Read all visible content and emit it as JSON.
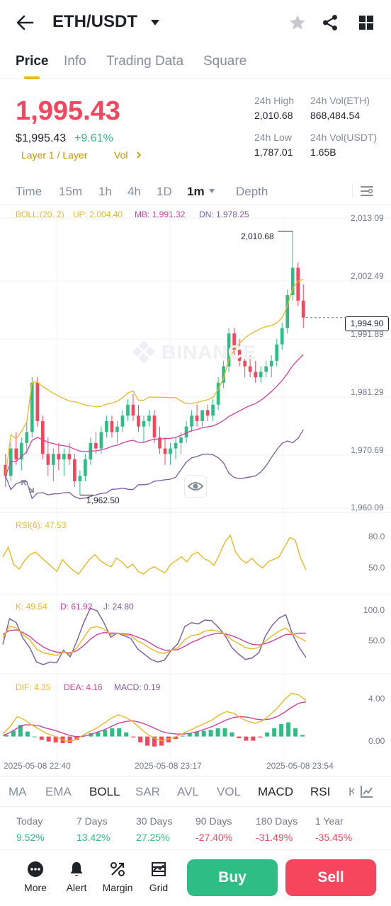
{
  "header": {
    "pair": "ETH/USDT",
    "icons": [
      "back-arrow-icon",
      "caret-down-icon",
      "star-icon",
      "share-icon",
      "grid-icon"
    ]
  },
  "tabs": [
    "Price",
    "Info",
    "Trading Data",
    "Square"
  ],
  "price": {
    "last": "1,995.43",
    "usd": "$1,995.43",
    "change": "+9.61%",
    "tag": "Layer 1 / Layer",
    "vol_tag": "Vol",
    "high_label": "24h High",
    "high": "2,010.68",
    "low_label": "24h Low",
    "low": "1,787.01",
    "vol_eth_label": "24h Vol(ETH)",
    "vol_eth": "868,484.54",
    "vol_usdt_label": "24h Vol(USDT)",
    "vol_usdt": "1.65B"
  },
  "intervals": {
    "items": [
      "Time",
      "15m",
      "1h",
      "4h",
      "1D",
      "1m",
      "Depth"
    ],
    "active": "1m"
  },
  "boll": {
    "label": "BOLL:(20, 2)",
    "up": "UP: 2,004.40",
    "mb": "MB: 1,991.32",
    "dn": "DN: 1,978.25"
  },
  "price_axis": [
    "2,013.09",
    "2,002.49",
    "1,991.89",
    "1,981.29",
    "1,970.69",
    "1,960.09"
  ],
  "current_price_tag": "1,994.90",
  "high_marker": "2,010.68",
  "low_marker": "1,962.50",
  "watermark": "BINANCE",
  "rsi": {
    "label": "RSI(6): 47.53",
    "axis": [
      "80.0",
      "50.0"
    ]
  },
  "kdj": {
    "k": "K: 49.54",
    "d": "D: 61.92",
    "j": "J: 24.80",
    "axis": [
      "100.0",
      "50.0"
    ]
  },
  "macd": {
    "dif": "DIF: 4.35",
    "dea": "DEA: 4.16",
    "macd": "MACD: 0.19",
    "axis": [
      "4.00",
      "0.00"
    ]
  },
  "time_axis": [
    "2025-05-08 22:40",
    "2025-05-08 23:17",
    "2025-05-08 23:54"
  ],
  "indicator_tabs": [
    "MA",
    "EMA",
    "BOLL",
    "SAR",
    "AVL",
    "VOL",
    "MACD",
    "RSI",
    "K"
  ],
  "indicator_active": [
    "BOLL",
    "MACD",
    "RSI"
  ],
  "performance": [
    {
      "label": "Today",
      "value": "9.52%"
    },
    {
      "label": "7 Days",
      "value": "13.42%"
    },
    {
      "label": "30 Days",
      "value": "27.25%"
    },
    {
      "label": "90 Days",
      "value": "-27.40%"
    },
    {
      "label": "180 Days",
      "value": "-31.49%"
    },
    {
      "label": "1 Year",
      "value": "-35.45%"
    }
  ],
  "bottom_bar": {
    "more": "More",
    "alert": "Alert",
    "margin": "Margin",
    "grid": "Grid",
    "buy": "Buy",
    "sell": "Sell"
  },
  "colors": {
    "up": "#2ebd85",
    "down": "#f6465d",
    "yellow": "#e8b923",
    "magenta": "#d13fa0",
    "purple": "#7a5b9e",
    "accent": "#f0b90b"
  },
  "chart_data": {
    "type": "candlestick",
    "title": "",
    "ylim": [
      1960.09,
      2013.09
    ],
    "candles": [
      {
        "o": 1968,
        "h": 1970,
        "l": 1964,
        "c": 1966
      },
      {
        "o": 1966,
        "h": 1972,
        "l": 1965,
        "c": 1971
      },
      {
        "o": 1971,
        "h": 1974,
        "l": 1968,
        "c": 1969
      },
      {
        "o": 1969,
        "h": 1973,
        "l": 1967,
        "c": 1972
      },
      {
        "o": 1972,
        "h": 1976,
        "l": 1970,
        "c": 1974
      },
      {
        "o": 1974,
        "h": 1984,
        "l": 1973,
        "c": 1983
      },
      {
        "o": 1983,
        "h": 1984,
        "l": 1975,
        "c": 1976
      },
      {
        "o": 1976,
        "h": 1977,
        "l": 1969,
        "c": 1970
      },
      {
        "o": 1970,
        "h": 1973,
        "l": 1966,
        "c": 1968
      },
      {
        "o": 1968,
        "h": 1971,
        "l": 1965,
        "c": 1970
      },
      {
        "o": 1970,
        "h": 1972,
        "l": 1967,
        "c": 1969
      },
      {
        "o": 1969,
        "h": 1971,
        "l": 1966,
        "c": 1970
      },
      {
        "o": 1970,
        "h": 1972,
        "l": 1968,
        "c": 1969
      },
      {
        "o": 1969,
        "h": 1970,
        "l": 1964,
        "c": 1965
      },
      {
        "o": 1965,
        "h": 1967,
        "l": 1962.5,
        "c": 1966
      },
      {
        "o": 1966,
        "h": 1970,
        "l": 1965,
        "c": 1969
      },
      {
        "o": 1969,
        "h": 1973,
        "l": 1968,
        "c": 1972
      },
      {
        "o": 1972,
        "h": 1974,
        "l": 1970,
        "c": 1971
      },
      {
        "o": 1971,
        "h": 1975,
        "l": 1970,
        "c": 1974
      },
      {
        "o": 1974,
        "h": 1977,
        "l": 1973,
        "c": 1976
      },
      {
        "o": 1976,
        "h": 1977,
        "l": 1973,
        "c": 1974
      },
      {
        "o": 1974,
        "h": 1976,
        "l": 1972,
        "c": 1975
      },
      {
        "o": 1975,
        "h": 1978,
        "l": 1974,
        "c": 1977
      },
      {
        "o": 1977,
        "h": 1980,
        "l": 1976,
        "c": 1979
      },
      {
        "o": 1979,
        "h": 1981,
        "l": 1976,
        "c": 1977
      },
      {
        "o": 1977,
        "h": 1979,
        "l": 1974,
        "c": 1975
      },
      {
        "o": 1975,
        "h": 1977,
        "l": 1972,
        "c": 1976
      },
      {
        "o": 1976,
        "h": 1978,
        "l": 1975,
        "c": 1977
      },
      {
        "o": 1977,
        "h": 1978,
        "l": 1972,
        "c": 1973
      },
      {
        "o": 1973,
        "h": 1975,
        "l": 1970,
        "c": 1971
      },
      {
        "o": 1971,
        "h": 1973,
        "l": 1968,
        "c": 1970
      },
      {
        "o": 1970,
        "h": 1972,
        "l": 1968,
        "c": 1971
      },
      {
        "o": 1971,
        "h": 1973,
        "l": 1969,
        "c": 1972
      },
      {
        "o": 1972,
        "h": 1974,
        "l": 1970,
        "c": 1973
      },
      {
        "o": 1973,
        "h": 1976,
        "l": 1972,
        "c": 1975
      },
      {
        "o": 1975,
        "h": 1978,
        "l": 1974,
        "c": 1977
      },
      {
        "o": 1977,
        "h": 1979,
        "l": 1975,
        "c": 1976
      },
      {
        "o": 1976,
        "h": 1978,
        "l": 1975,
        "c": 1978
      },
      {
        "o": 1978,
        "h": 1979,
        "l": 1976,
        "c": 1977
      },
      {
        "o": 1977,
        "h": 1980,
        "l": 1976,
        "c": 1979
      },
      {
        "o": 1979,
        "h": 1984,
        "l": 1978,
        "c": 1983
      },
      {
        "o": 1983,
        "h": 1987,
        "l": 1982,
        "c": 1986
      },
      {
        "o": 1986,
        "h": 1993,
        "l": 1985,
        "c": 1992
      },
      {
        "o": 1992,
        "h": 1993,
        "l": 1988,
        "c": 1989
      },
      {
        "o": 1989,
        "h": 1991,
        "l": 1986,
        "c": 1987
      },
      {
        "o": 1987,
        "h": 1989,
        "l": 1984,
        "c": 1986
      },
      {
        "o": 1986,
        "h": 1988,
        "l": 1984,
        "c": 1985
      },
      {
        "o": 1985,
        "h": 1987,
        "l": 1983,
        "c": 1984
      },
      {
        "o": 1984,
        "h": 1986,
        "l": 1983,
        "c": 1985
      },
      {
        "o": 1985,
        "h": 1987,
        "l": 1984,
        "c": 1986
      },
      {
        "o": 1986,
        "h": 1988,
        "l": 1984,
        "c": 1987
      },
      {
        "o": 1987,
        "h": 1991,
        "l": 1986,
        "c": 1990
      },
      {
        "o": 1990,
        "h": 1994,
        "l": 1989,
        "c": 1993
      },
      {
        "o": 1993,
        "h": 2000,
        "l": 1992,
        "c": 1999
      },
      {
        "o": 1999,
        "h": 2010.68,
        "l": 1998,
        "c": 2004
      },
      {
        "o": 2004,
        "h": 2005,
        "l": 1997,
        "c": 1998
      },
      {
        "o": 1998,
        "h": 2001,
        "l": 1993,
        "c": 1994.9
      }
    ],
    "rsi": [
      58,
      66,
      52,
      48,
      55,
      60,
      62,
      58,
      54,
      50,
      46,
      56,
      51,
      47,
      44,
      50,
      56,
      60,
      55,
      52,
      50,
      57,
      54,
      49,
      52,
      46,
      44,
      48,
      50,
      47,
      45,
      52,
      55,
      58,
      54,
      60,
      62,
      57,
      55,
      51,
      60,
      70,
      76,
      62,
      56,
      53,
      57,
      52,
      49,
      54,
      56,
      58,
      66,
      74,
      72,
      57,
      47.53
    ],
    "kdj_k": [
      55,
      72,
      70,
      60,
      52,
      38,
      32,
      30,
      28,
      34,
      30,
      40,
      55,
      70,
      72,
      68,
      60,
      62,
      60,
      58,
      50,
      45,
      38,
      33,
      31,
      36,
      40,
      52,
      58,
      60,
      65,
      67,
      65,
      60,
      52,
      46,
      40,
      38,
      40,
      50,
      58,
      65,
      70,
      60,
      55,
      49.54
    ],
    "kdj_d": [
      60,
      66,
      67,
      63,
      57,
      48,
      41,
      36,
      33,
      33,
      32,
      35,
      43,
      53,
      60,
      63,
      62,
      62,
      61,
      60,
      56,
      52,
      46,
      40,
      36,
      36,
      37,
      42,
      48,
      52,
      57,
      60,
      62,
      61,
      58,
      54,
      49,
      45,
      44,
      46,
      50,
      55,
      60,
      60,
      62,
      61.92
    ],
    "kdj_j": [
      45,
      84,
      78,
      54,
      40,
      18,
      14,
      18,
      17,
      36,
      26,
      50,
      78,
      100,
      96,
      78,
      56,
      62,
      58,
      54,
      38,
      30,
      22,
      18,
      21,
      36,
      46,
      72,
      78,
      76,
      82,
      81,
      71,
      58,
      40,
      30,
      22,
      24,
      32,
      58,
      74,
      85,
      90,
      60,
      40,
      24.8
    ],
    "macd_dif": [
      0.3,
      1.2,
      2.4,
      2.0,
      1.4,
      0.9,
      0.4,
      0.1,
      -0.3,
      -0.6,
      -0.4,
      0.1,
      0.6,
      1.0,
      1.6,
      2.2,
      2.6,
      2.3,
      1.8,
      1.0,
      0.3,
      -0.2,
      -0.5,
      -0.3,
      0.0,
      0.4,
      0.8,
      1.2,
      1.6,
      2.0,
      2.6,
      3.0,
      2.8,
      2.2,
      1.8,
      1.6,
      1.9,
      2.6,
      3.4,
      4.4,
      5.2,
      5.0,
      4.35
    ],
    "macd_dea": [
      0.1,
      0.5,
      1.0,
      1.4,
      1.4,
      1.3,
      1.0,
      0.8,
      0.5,
      0.2,
      0.0,
      0.0,
      0.2,
      0.5,
      0.8,
      1.2,
      1.6,
      1.8,
      1.9,
      1.7,
      1.4,
      1.0,
      0.6,
      0.4,
      0.3,
      0.3,
      0.4,
      0.6,
      0.9,
      1.2,
      1.6,
      2.0,
      2.3,
      2.4,
      2.3,
      2.1,
      2.0,
      2.1,
      2.4,
      2.9,
      3.5,
      4.0,
      4.16
    ],
    "macd_hist": [
      0.2,
      0.7,
      1.4,
      0.6,
      0.0,
      -0.4,
      -0.6,
      -0.7,
      -0.8,
      -0.8,
      -0.4,
      0.1,
      0.4,
      0.5,
      0.8,
      1.0,
      1.0,
      0.5,
      -0.1,
      -0.7,
      -1.1,
      -1.2,
      -1.1,
      -0.7,
      -0.3,
      0.1,
      0.4,
      0.6,
      0.7,
      0.8,
      1.0,
      1.0,
      0.5,
      -0.2,
      -0.5,
      -0.5,
      -0.1,
      0.5,
      1.0,
      1.5,
      1.7,
      1.0,
      0.19
    ]
  }
}
